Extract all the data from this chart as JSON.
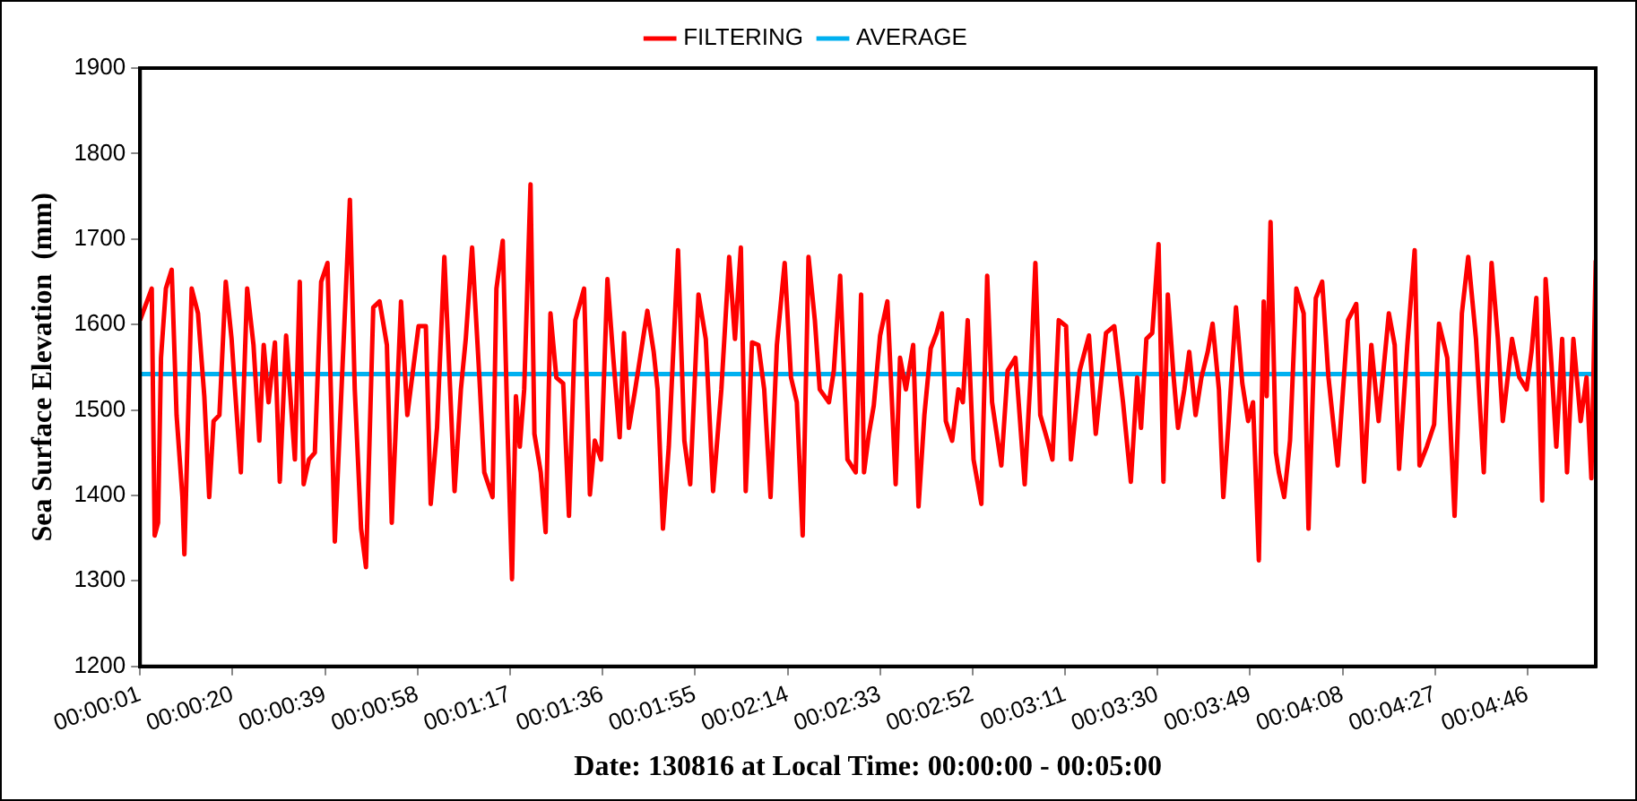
{
  "chart_data": {
    "type": "line",
    "xlabel": "Date: 130816 at Local Time: 00:00:00 - 00:05:00",
    "ylabel": "Sea Surface Elevation  (mm)",
    "xlim": [
      0.000278,
      0.083333
    ],
    "ylim": [
      1200,
      1900
    ],
    "yticks": [
      1200,
      1300,
      1400,
      1500,
      1600,
      1700,
      1800,
      1900
    ],
    "xticks": [
      {
        "value": 0.000278,
        "label": "00:00:01"
      },
      {
        "value": 0.005556,
        "label": "00:00:20"
      },
      {
        "value": 0.010833,
        "label": "00:00:39"
      },
      {
        "value": 0.016111,
        "label": "00:00:58"
      },
      {
        "value": 0.021389,
        "label": "00:01:17"
      },
      {
        "value": 0.026667,
        "label": "00:01:36"
      },
      {
        "value": 0.031944,
        "label": "00:01:55"
      },
      {
        "value": 0.037222,
        "label": "00:02:14"
      },
      {
        "value": 0.0425,
        "label": "00:02:33"
      },
      {
        "value": 0.047778,
        "label": "00:02:52"
      },
      {
        "value": 0.053056,
        "label": "00:03:11"
      },
      {
        "value": 0.058333,
        "label": "00:03:30"
      },
      {
        "value": 0.063611,
        "label": "00:03:49"
      },
      {
        "value": 0.068889,
        "label": "00:04:08"
      },
      {
        "value": 0.074167,
        "label": "00:04:27"
      },
      {
        "value": 0.079444,
        "label": "00:04:46"
      }
    ],
    "grid": false,
    "legend": "top",
    "marker": "none",
    "line_style": "solid",
    "series": [
      {
        "name": "FILTERING",
        "color": "#ff0000",
        "x": [
          0.000278,
          0.000944,
          0.001111,
          0.001306,
          0.001472,
          0.00175,
          0.002083,
          0.002361,
          0.002694,
          0.002806,
          0.003222,
          0.003583,
          0.00375,
          0.003944,
          0.004222,
          0.004472,
          0.004806,
          0.005167,
          0.0055,
          0.005694,
          0.006028,
          0.006389,
          0.00675,
          0.007083,
          0.007333,
          0.007611,
          0.007972,
          0.00825,
          0.008611,
          0.009111,
          0.009389,
          0.009611,
          0.009917,
          0.01025,
          0.010611,
          0.010972,
          0.011389,
          0.011833,
          0.01225,
          0.012528,
          0.012889,
          0.013167,
          0.013583,
          0.013944,
          0.014361,
          0.014639,
          0.015167,
          0.015528,
          0.016167,
          0.016583,
          0.016861,
          0.017222,
          0.017639,
          0.018222,
          0.018583,
          0.018861,
          0.019222,
          0.019639,
          0.019917,
          0.020389,
          0.020611,
          0.020972,
          0.02125,
          0.0215,
          0.021722,
          0.021944,
          0.022194,
          0.022556,
          0.022778,
          0.023139,
          0.023417,
          0.023694,
          0.024028,
          0.024417,
          0.02475,
          0.025111,
          0.025611,
          0.025944,
          0.026222,
          0.026583,
          0.026944,
          0.027278,
          0.027639,
          0.027889,
          0.028167,
          0.028528,
          0.028972,
          0.029222,
          0.029583,
          0.029806,
          0.030111,
          0.030444,
          0.030972,
          0.031333,
          0.031667,
          0.032139,
          0.032556,
          0.032972,
          0.033444,
          0.033889,
          0.034222,
          0.034556,
          0.034833,
          0.035194,
          0.035556,
          0.035889,
          0.03625,
          0.036611,
          0.037056,
          0.037417,
          0.03775,
          0.038083,
          0.038417,
          0.038778,
          0.039056,
          0.039583,
          0.039861,
          0.040222,
          0.040639,
          0.041111,
          0.041417,
          0.041583,
          0.041861,
          0.042139,
          0.0425,
          0.042917,
          0.043389,
          0.043639,
          0.043972,
          0.044389,
          0.044694,
          0.045028,
          0.045389,
          0.045722,
          0.046028,
          0.04625,
          0.046611,
          0.046972,
          0.047222,
          0.0475,
          0.047833,
          0.048278,
          0.048611,
          0.048889,
          0.049417,
          0.049778,
          0.050222,
          0.05075,
          0.051083,
          0.051361,
          0.051639,
          0.052056,
          0.052333,
          0.052694,
          0.053111,
          0.053389,
          0.053889,
          0.054417,
          0.054806,
          0.055389,
          0.055861,
          0.056361,
          0.056806,
          0.057167,
          0.057389,
          0.057694,
          0.058028,
          0.058389,
          0.058667,
          0.058917,
          0.05925,
          0.0595,
          0.059861,
          0.060139,
          0.0605,
          0.060833,
          0.061194,
          0.061472,
          0.061833,
          0.062083,
          0.062389,
          0.062806,
          0.063167,
          0.0635,
          0.063778,
          0.064111,
          0.064389,
          0.064556,
          0.064778,
          0.065083,
          0.06525,
          0.065556,
          0.065889,
          0.06625,
          0.066667,
          0.066944,
          0.067361,
          0.067722,
          0.068083,
          0.068611,
          0.069194,
          0.069667,
          0.070111,
          0.070528,
          0.070944,
          0.071528,
          0.071861,
          0.072111,
          0.072583,
          0.073,
          0.073278,
          0.073694,
          0.074111,
          0.074389,
          0.074861,
          0.075278,
          0.075694,
          0.076056,
          0.0765,
          0.076944,
          0.077389,
          0.07775,
          0.078028,
          0.078556,
          0.078972,
          0.079389,
          0.079667,
          0.079944,
          0.080278,
          0.080472,
          0.080806,
          0.081083,
          0.081417,
          0.081694,
          0.082056,
          0.082472,
          0.082806,
          0.083083,
          0.083333
        ],
        "values": [
          1605,
          1642,
          1353,
          1368,
          1561,
          1642,
          1664,
          1494,
          1398,
          1331,
          1642,
          1613,
          1568,
          1516,
          1398,
          1487,
          1494,
          1650,
          1583,
          1524,
          1427,
          1642,
          1576,
          1464,
          1576,
          1509,
          1579,
          1416,
          1587,
          1442,
          1650,
          1413,
          1442,
          1450,
          1650,
          1672,
          1346,
          1553,
          1746,
          1524,
          1361,
          1316,
          1620,
          1627,
          1576,
          1368,
          1627,
          1494,
          1598,
          1598,
          1390,
          1479,
          1679,
          1405,
          1524,
          1583,
          1690,
          1538,
          1427,
          1398,
          1642,
          1698,
          1472,
          1302,
          1516,
          1457,
          1524,
          1764,
          1472,
          1427,
          1357,
          1613,
          1538,
          1531,
          1376,
          1605,
          1642,
          1401,
          1464,
          1442,
          1653,
          1561,
          1468,
          1590,
          1479,
          1524,
          1583,
          1616,
          1568,
          1524,
          1361,
          1457,
          1687,
          1464,
          1413,
          1635,
          1583,
          1405,
          1524,
          1679,
          1583,
          1690,
          1405,
          1579,
          1576,
          1524,
          1398,
          1576,
          1672,
          1538,
          1509,
          1353,
          1679,
          1605,
          1524,
          1509,
          1546,
          1657,
          1442,
          1427,
          1635,
          1427,
          1472,
          1505,
          1587,
          1627,
          1413,
          1561,
          1524,
          1576,
          1387,
          1494,
          1572,
          1590,
          1613,
          1487,
          1464,
          1524,
          1509,
          1605,
          1442,
          1390,
          1657,
          1509,
          1435,
          1546,
          1561,
          1413,
          1538,
          1672,
          1494,
          1464,
          1442,
          1605,
          1598,
          1442,
          1546,
          1587,
          1472,
          1590,
          1598,
          1509,
          1416,
          1538,
          1479,
          1583,
          1590,
          1694,
          1416,
          1635,
          1538,
          1479,
          1524,
          1568,
          1494,
          1538,
          1568,
          1601,
          1524,
          1398,
          1487,
          1620,
          1531,
          1487,
          1509,
          1324,
          1627,
          1516,
          1720,
          1450,
          1427,
          1398,
          1464,
          1642,
          1613,
          1361,
          1631,
          1650,
          1538,
          1435,
          1605,
          1624,
          1416,
          1576,
          1487,
          1613,
          1576,
          1431,
          1576,
          1687,
          1435,
          1457,
          1483,
          1601,
          1561,
          1376,
          1613,
          1679,
          1583,
          1427,
          1672,
          1583,
          1487,
          1583,
          1538,
          1524,
          1568,
          1631,
          1394,
          1653,
          1553,
          1457,
          1583,
          1427,
          1583,
          1487,
          1538,
          1420,
          1675
        ]
      },
      {
        "name": "AVERAGE",
        "color": "#00b0f0",
        "x": [
          0.000278,
          0.083333
        ],
        "values": [
          1542,
          1542
        ]
      }
    ]
  }
}
